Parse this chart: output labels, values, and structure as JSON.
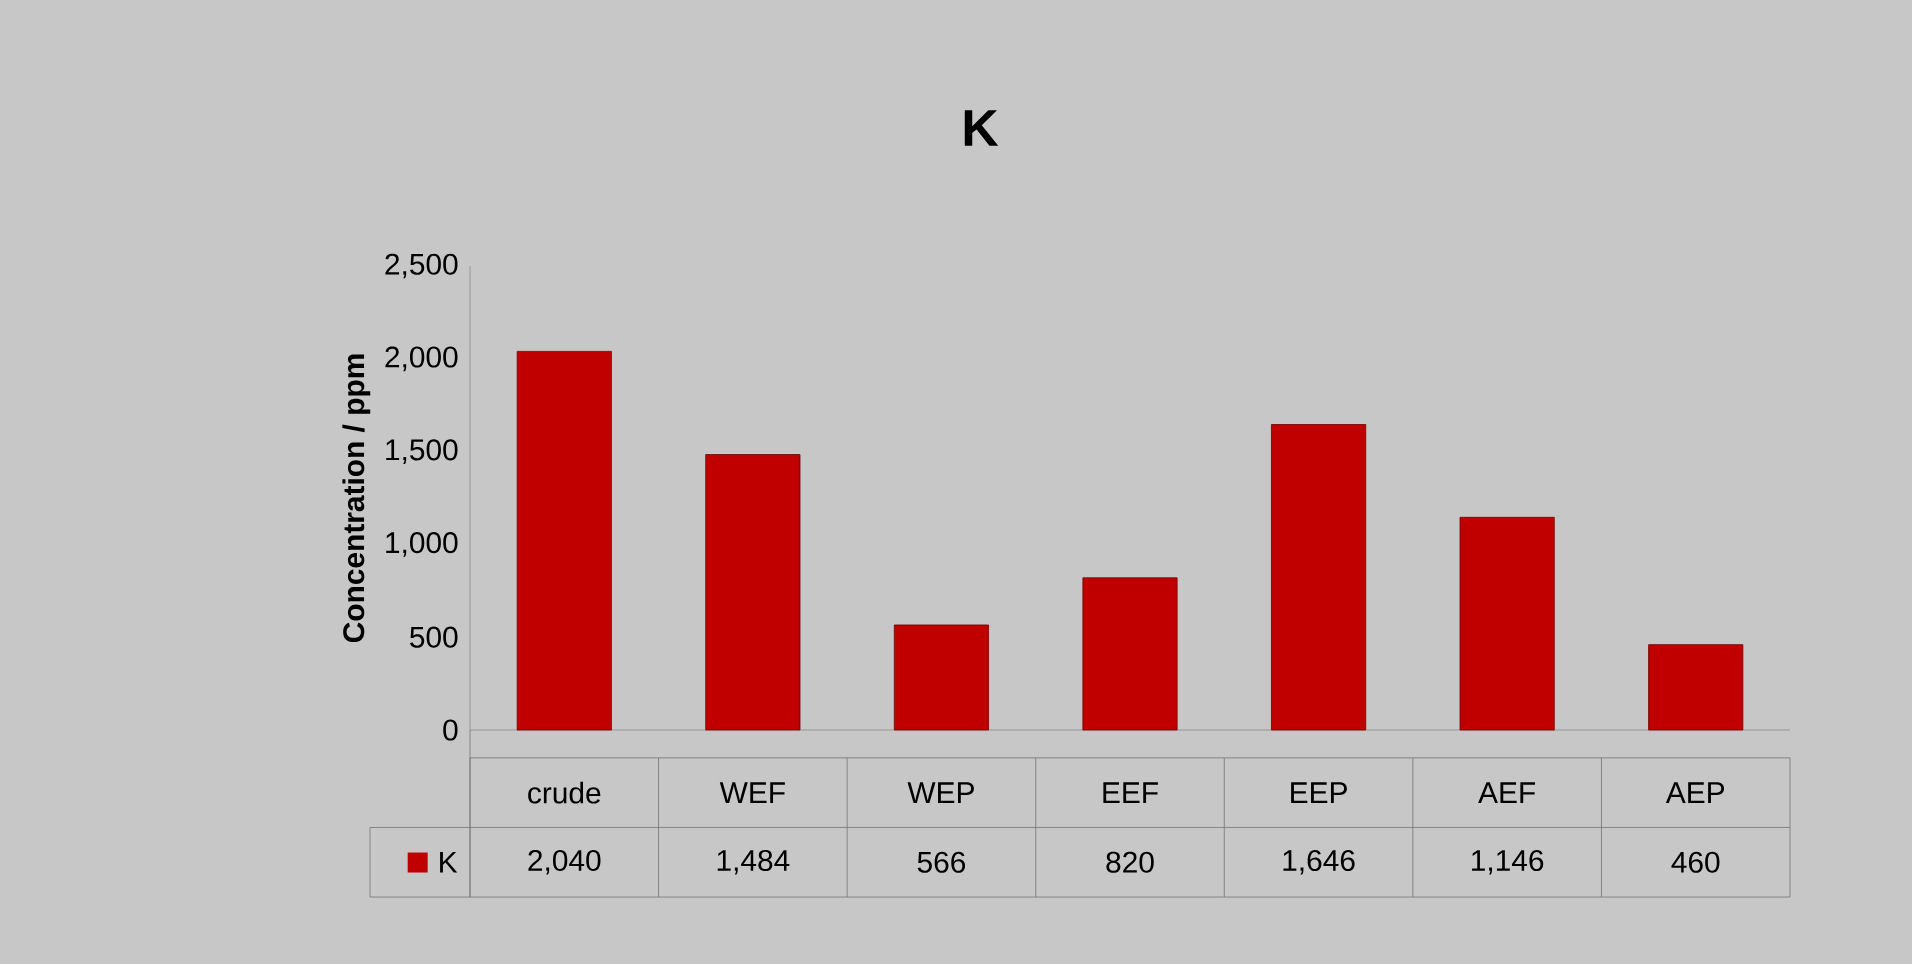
{
  "chart_data": {
    "type": "bar",
    "title": "K",
    "ylabel": "Concentration / ppm",
    "categories": [
      "crude",
      "WEF",
      "WEP",
      "EEF",
      "EEP",
      "AEF",
      "AEP"
    ],
    "series": [
      {
        "name": "K",
        "color": "#c00000",
        "values": [
          2040,
          1484,
          566,
          820,
          1646,
          1146,
          460
        ],
        "value_labels": [
          "2,040",
          "1,484",
          "566",
          "820",
          "1,646",
          "1,146",
          "460"
        ]
      }
    ],
    "ylim": [
      0,
      2500
    ],
    "yticks": [
      0,
      500,
      {
        "value": 1000,
        "label": "1,000"
      },
      {
        "value": 1500,
        "label": "1,500"
      },
      {
        "value": 2000,
        "label": "2,000"
      },
      {
        "value": 2500,
        "label": "2,500"
      }
    ],
    "legend": "bottom left"
  }
}
